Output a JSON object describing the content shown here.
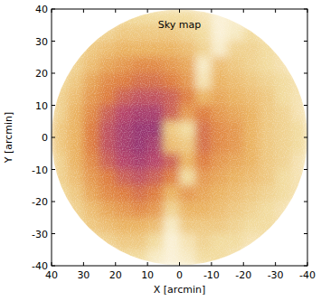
{
  "chart_data": {
    "type": "heatmap",
    "title": "Sky map",
    "x_label": "X [arcmin]",
    "y_label": "Y [arcmin]",
    "xlim": [
      40,
      -40
    ],
    "ylim": [
      -40,
      40
    ],
    "xticks": [
      40,
      30,
      20,
      10,
      0,
      -10,
      -20,
      -30,
      -40
    ],
    "yticks": [
      -40,
      -30,
      -20,
      -10,
      0,
      10,
      20,
      30,
      40
    ],
    "x": [
      37.5,
      32.5,
      27.5,
      22.5,
      17.5,
      12.5,
      7.5,
      2.5,
      -2.5,
      -7.5,
      -12.5,
      -17.5,
      -22.5,
      -27.5,
      -32.5,
      -37.5
    ],
    "y": [
      37.5,
      32.5,
      27.5,
      22.5,
      17.5,
      12.5,
      7.5,
      2.5,
      -2.5,
      -7.5,
      -12.5,
      -17.5,
      -22.5,
      -27.5,
      -32.5,
      -37.5
    ],
    "cells": [
      [
        null,
        null,
        null,
        null,
        2,
        2,
        2,
        2,
        2,
        1.5,
        0.5,
        0.8,
        null,
        null,
        null,
        null
      ],
      [
        null,
        null,
        2,
        2.5,
        3,
        3,
        3,
        3,
        2.5,
        2,
        0.5,
        1,
        2,
        1.5,
        null,
        null
      ],
      [
        null,
        2,
        3,
        3.5,
        4,
        4,
        4,
        4,
        3.5,
        2.5,
        0.8,
        2.5,
        2.5,
        2,
        1.5,
        null
      ],
      [
        null,
        2.5,
        3.5,
        4.5,
        5,
        5.5,
        5.5,
        5,
        4.5,
        1,
        3.5,
        3,
        2.5,
        2,
        1.5,
        null
      ],
      [
        2,
        3,
        4.5,
        5.5,
        6,
        6.5,
        6.5,
        6,
        5,
        1.5,
        4,
        3.5,
        3,
        2.5,
        2,
        1.5
      ],
      [
        2.5,
        3.5,
        5,
        6,
        7,
        7.5,
        7.5,
        7,
        6,
        4,
        4.5,
        4,
        3.5,
        3,
        2,
        1.5
      ],
      [
        2.5,
        4,
        5.5,
        7,
        8,
        8.5,
        8.5,
        7,
        5,
        6,
        5,
        4.5,
        4,
        3,
        2.5,
        1.5
      ],
      [
        3,
        4,
        6,
        7.5,
        8.5,
        9,
        9,
        3,
        2,
        6.5,
        5.5,
        5,
        4,
        3,
        2.5,
        2
      ],
      [
        3,
        4,
        6,
        7.5,
        8.5,
        9,
        8.5,
        3.5,
        3,
        6.5,
        5.5,
        5,
        4,
        3,
        2.5,
        2
      ],
      [
        2.5,
        4,
        5.5,
        7,
        8,
        8.5,
        8,
        7,
        4,
        6,
        5,
        4.5,
        4,
        3,
        2.5,
        1.5
      ],
      [
        2.5,
        3.5,
        5,
        6,
        7,
        7.5,
        7,
        6,
        2,
        5,
        4.5,
        4,
        3.5,
        3,
        2,
        1.5
      ],
      [
        2,
        3,
        4.5,
        5.5,
        6,
        6.5,
        6,
        4,
        5,
        4.5,
        4,
        3.5,
        3,
        2.5,
        2,
        1.5
      ],
      [
        null,
        2.5,
        3.5,
        4.5,
        5,
        5.5,
        5,
        2.5,
        4,
        4,
        3.5,
        3,
        2.5,
        2,
        1.5,
        null
      ],
      [
        null,
        2,
        3,
        3.5,
        4,
        4,
        3.5,
        1,
        3,
        3,
        3,
        2.5,
        2,
        2,
        1.5,
        null
      ],
      [
        null,
        null,
        2,
        2.5,
        3,
        3,
        2,
        0.5,
        1.5,
        2.5,
        2,
        2,
        1.5,
        1.5,
        null,
        null
      ],
      [
        null,
        null,
        null,
        null,
        2,
        2,
        1,
        0.5,
        1,
        2,
        2,
        1.5,
        null,
        null,
        null,
        null
      ]
    ],
    "zlim": [
      0,
      10
    ],
    "grid": false
  }
}
